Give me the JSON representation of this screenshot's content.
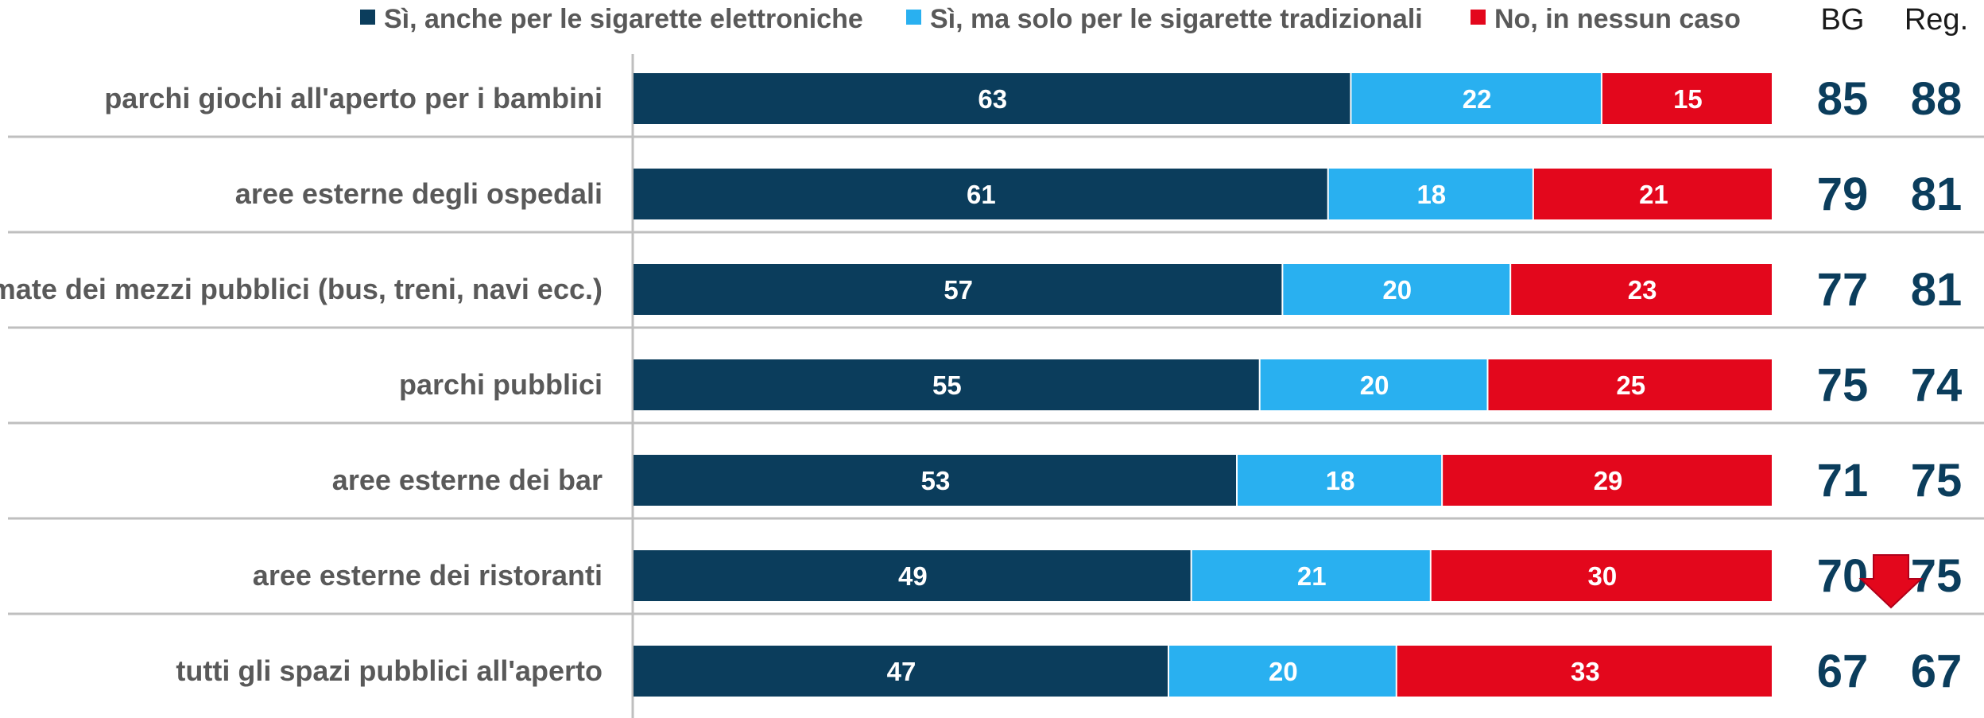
{
  "colors": {
    "series": [
      "#0b3d5c",
      "#29b0f0",
      "#e3071c"
    ],
    "text_labels": "#595959",
    "values": "#0b3d5c",
    "grid": "#bfbfbf",
    "arrow": "#e3071c"
  },
  "columns": {
    "bg_label": "BG",
    "reg_label": "Reg."
  },
  "chart_data": {
    "type": "bar",
    "orientation": "horizontal",
    "stacked": true,
    "legend_position": "top",
    "categories": [
      "parchi giochi all'aperto per i bambini",
      "aree esterne degli ospedali",
      "fermate dei mezzi pubblici (bus, treni, navi ecc.)",
      "parchi pubblici",
      "aree esterne dei bar",
      "aree esterne dei ristoranti",
      "tutti gli spazi pubblici all'aperto"
    ],
    "series": [
      {
        "name": "Sì, anche per le sigarette elettroniche",
        "values": [
          63,
          61,
          57,
          55,
          53,
          49,
          47
        ]
      },
      {
        "name": "Sì, ma solo per le sigarette tradizionali",
        "values": [
          22,
          18,
          20,
          20,
          18,
          21,
          20
        ]
      },
      {
        "name": "No, in nessun caso",
        "values": [
          15,
          21,
          23,
          25,
          29,
          30,
          33
        ]
      }
    ],
    "bg_values": [
      85,
      79,
      77,
      75,
      71,
      70,
      67
    ],
    "reg_values": [
      88,
      81,
      81,
      74,
      75,
      75,
      67
    ],
    "annotations": [
      {
        "type": "down-arrow",
        "category": "aree esterne dei ristoranti"
      }
    ],
    "xlim": [
      0,
      100
    ],
    "grid": false
  }
}
